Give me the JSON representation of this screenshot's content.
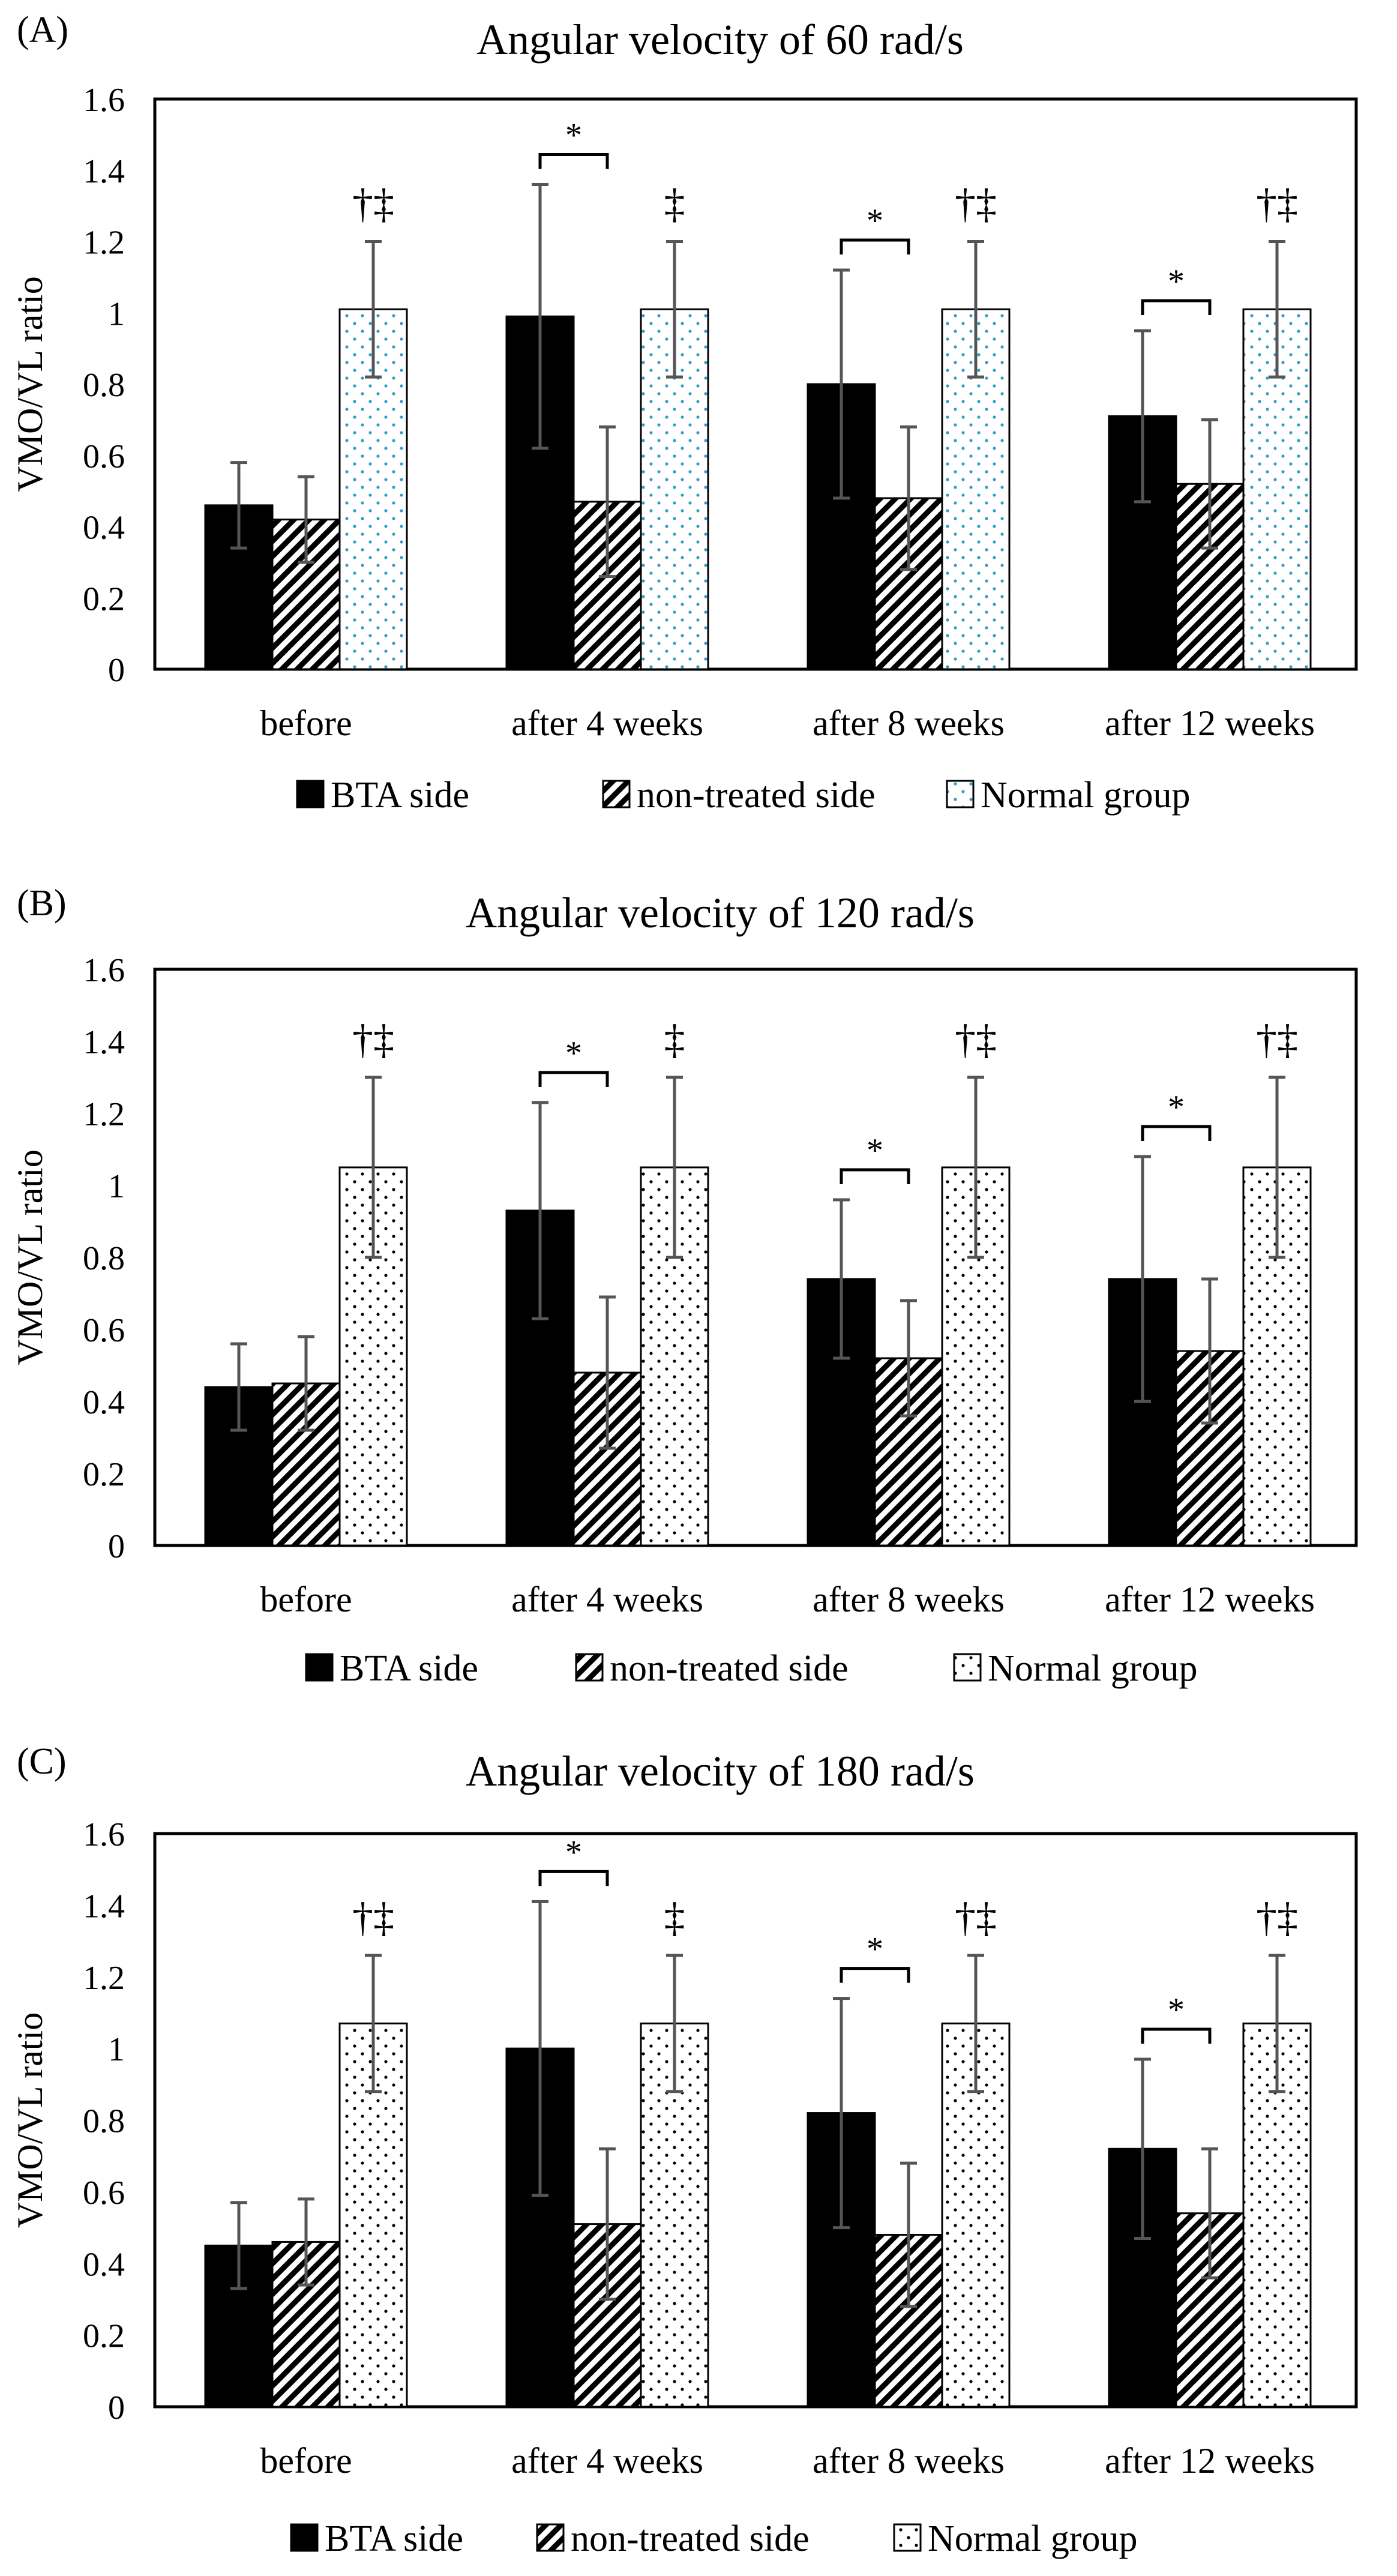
{
  "chart_data": [
    {
      "type": "bar",
      "panel_label": "(A)",
      "title": "Angular velocity of 60 rad/s",
      "xlabel": "",
      "ylabel": "VMO/VL ratio",
      "ylim": [
        0,
        1.6
      ],
      "yticks": [
        "0",
        "0.2",
        "0.4",
        "0.6",
        "0.8",
        "1",
        "1.2",
        "1.4",
        "1.6"
      ],
      "categories": [
        "before",
        "after 4 weeks",
        "after 8 weeks",
        "after 12 weeks"
      ],
      "series": [
        {
          "name": "BTA side",
          "values": [
            0.46,
            0.99,
            0.8,
            0.71
          ],
          "errors": [
            0.12,
            0.37,
            0.32,
            0.24
          ]
        },
        {
          "name": "non-treated side",
          "values": [
            0.42,
            0.47,
            0.48,
            0.52
          ],
          "errors": [
            0.12,
            0.21,
            0.2,
            0.18
          ]
        },
        {
          "name": "Normal group",
          "values": [
            1.01,
            1.01,
            1.01,
            1.01
          ],
          "errors": [
            0.19,
            0.19,
            0.19,
            0.19
          ]
        }
      ],
      "significance_marks": [
        "†‡",
        "‡",
        "†‡",
        "†‡"
      ],
      "bracket_label": "*",
      "normal_dot_color": "#2aa0c8",
      "legend": "bottom"
    },
    {
      "type": "bar",
      "panel_label": "(B)",
      "title": "Angular velocity of 120 rad/s",
      "xlabel": "",
      "ylabel": "VMO/VL ratio",
      "ylim": [
        0,
        1.6
      ],
      "yticks": [
        "0",
        "0.2",
        "0.4",
        "0.6",
        "0.8",
        "1",
        "1.2",
        "1.4",
        "1.6"
      ],
      "categories": [
        "before",
        "after 4 weeks",
        "after 8 weeks",
        "after 12 weeks"
      ],
      "series": [
        {
          "name": "BTA side",
          "values": [
            0.44,
            0.93,
            0.74,
            0.74
          ],
          "errors": [
            0.12,
            0.3,
            0.22,
            0.34
          ]
        },
        {
          "name": "non-treated side",
          "values": [
            0.45,
            0.48,
            0.52,
            0.54
          ],
          "errors": [
            0.13,
            0.21,
            0.16,
            0.2
          ]
        },
        {
          "name": "Normal group",
          "values": [
            1.05,
            1.05,
            1.05,
            1.05
          ],
          "errors": [
            0.25,
            0.25,
            0.25,
            0.25
          ]
        }
      ],
      "significance_marks": [
        "†‡",
        "‡",
        "†‡",
        "†‡"
      ],
      "bracket_label": "*",
      "normal_dot_color": "#000000",
      "legend": "bottom"
    },
    {
      "type": "bar",
      "panel_label": "(C)",
      "title": "Angular velocity of 180 rad/s",
      "xlabel": "",
      "ylabel": "VMO/VL ratio",
      "ylim": [
        0,
        1.6
      ],
      "yticks": [
        "0",
        "0.2",
        "0.4",
        "0.6",
        "0.8",
        "1",
        "1.2",
        "1.4",
        "1.6"
      ],
      "categories": [
        "before",
        "after 4 weeks",
        "after 8 weeks",
        "after 12 weeks"
      ],
      "series": [
        {
          "name": "BTA side",
          "values": [
            0.45,
            1.0,
            0.82,
            0.72
          ],
          "errors": [
            0.12,
            0.41,
            0.32,
            0.25
          ]
        },
        {
          "name": "non-treated side",
          "values": [
            0.46,
            0.51,
            0.48,
            0.54
          ],
          "errors": [
            0.12,
            0.21,
            0.2,
            0.18
          ]
        },
        {
          "name": "Normal group",
          "values": [
            1.07,
            1.07,
            1.07,
            1.07
          ],
          "errors": [
            0.19,
            0.19,
            0.19,
            0.19
          ]
        }
      ],
      "significance_marks": [
        "†‡",
        "‡",
        "†‡",
        "†‡"
      ],
      "bracket_label": "*",
      "normal_dot_color": "#000000",
      "legend": "bottom"
    }
  ]
}
